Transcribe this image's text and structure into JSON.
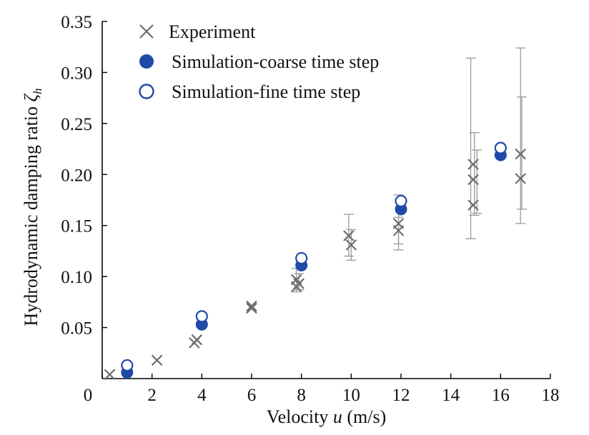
{
  "chart_data": {
    "type": "scatter",
    "xlabel": "Velocity u (m/s)",
    "xlabel_parts": {
      "before": "Velocity ",
      "italic": "u",
      "after": " (m/s)"
    },
    "ylabel": "Hydrodynamic damping ratio ζh",
    "ylabel_parts": {
      "text": "Hydrodynamic damping ratio ",
      "symbol": "ζ",
      "subscript": "h"
    },
    "xlim": [
      0,
      18
    ],
    "ylim": [
      0,
      0.35
    ],
    "xticks": [
      0,
      2,
      4,
      6,
      8,
      10,
      12,
      14,
      16,
      18
    ],
    "xtick_labels": [
      "0",
      "2",
      "4",
      "6",
      "8",
      "10",
      "12",
      "14",
      "16",
      "18"
    ],
    "yticks": [
      0.05,
      0.1,
      0.15,
      0.2,
      0.25,
      0.3,
      0.35
    ],
    "ytick_labels": [
      "0.05",
      "0.10",
      "0.15",
      "0.20",
      "0.25",
      "0.30",
      "0.35"
    ],
    "legend_position": "top-left",
    "series": [
      {
        "name": "Experiment",
        "marker": "x",
        "color": "#6e6e6e",
        "points": [
          {
            "x": 0.3,
            "y": 0.004
          },
          {
            "x": 2.2,
            "y": 0.018
          },
          {
            "x": 3.7,
            "y": 0.035
          },
          {
            "x": 3.8,
            "y": 0.038
          },
          {
            "x": 6.0,
            "y": 0.069
          },
          {
            "x": 6.0,
            "y": 0.071
          },
          {
            "x": 7.8,
            "y": 0.09
          },
          {
            "x": 7.8,
            "y": 0.097
          },
          {
            "x": 7.9,
            "y": 0.093
          },
          {
            "x": 9.9,
            "y": 0.14
          },
          {
            "x": 10.0,
            "y": 0.131
          },
          {
            "x": 11.9,
            "y": 0.145
          },
          {
            "x": 11.9,
            "y": 0.152
          },
          {
            "x": 14.9,
            "y": 0.21
          },
          {
            "x": 14.9,
            "y": 0.195
          },
          {
            "x": 14.9,
            "y": 0.17
          },
          {
            "x": 16.8,
            "y": 0.22
          },
          {
            "x": 16.8,
            "y": 0.196
          }
        ],
        "error_bars": [
          {
            "x": 7.8,
            "low": 0.085,
            "high": 0.108
          },
          {
            "x": 7.9,
            "low": 0.087,
            "high": 0.103
          },
          {
            "x": 9.9,
            "low": 0.12,
            "high": 0.161
          },
          {
            "x": 10.0,
            "low": 0.116,
            "high": 0.146
          },
          {
            "x": 11.9,
            "low": 0.132,
            "high": 0.158
          },
          {
            "x": 11.9,
            "low": 0.126,
            "high": 0.18
          },
          {
            "x": 14.8,
            "low": 0.137,
            "high": 0.314
          },
          {
            "x": 14.95,
            "low": 0.16,
            "high": 0.241
          },
          {
            "x": 15.05,
            "low": 0.162,
            "high": 0.224
          },
          {
            "x": 16.8,
            "low": 0.152,
            "high": 0.324
          },
          {
            "x": 16.85,
            "low": 0.166,
            "high": 0.276
          }
        ]
      },
      {
        "name": "Simulation-coarse time step",
        "marker": "filled-circle",
        "color": "#1f4aa8",
        "points": [
          {
            "x": 1.0,
            "y": 0.006
          },
          {
            "x": 4.0,
            "y": 0.053
          },
          {
            "x": 8.0,
            "y": 0.111
          },
          {
            "x": 12.0,
            "y": 0.166
          },
          {
            "x": 16.0,
            "y": 0.219
          }
        ]
      },
      {
        "name": "Simulation-fine time step",
        "marker": "open-circle",
        "color": "#1f4aa8",
        "points": [
          {
            "x": 1.0,
            "y": 0.013
          },
          {
            "x": 4.0,
            "y": 0.061
          },
          {
            "x": 8.0,
            "y": 0.118
          },
          {
            "x": 12.0,
            "y": 0.174
          },
          {
            "x": 16.0,
            "y": 0.226
          }
        ]
      }
    ]
  }
}
